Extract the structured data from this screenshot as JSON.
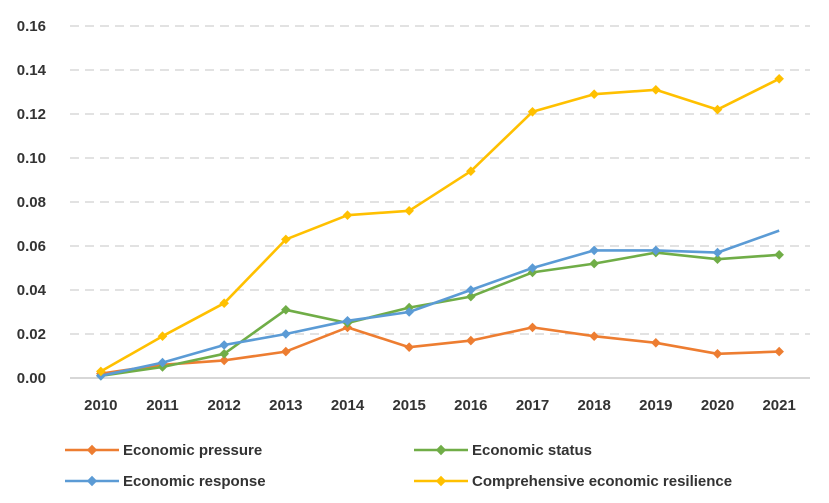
{
  "chart_data": {
    "type": "line",
    "title": "",
    "xlabel": "",
    "ylabel": "",
    "ylim": [
      0,
      0.16
    ],
    "yticks": [
      "0.00",
      "0.02",
      "0.04",
      "0.06",
      "0.08",
      "0.10",
      "0.12",
      "0.14",
      "0.16"
    ],
    "ytick_values": [
      0,
      0.02,
      0.04,
      0.06,
      0.08,
      0.1,
      0.12,
      0.14,
      0.16
    ],
    "grid": "horizontal-dashed",
    "legend_position": "bottom",
    "categories": [
      "2010",
      "2011",
      "2012",
      "2013",
      "2014",
      "2015",
      "2016",
      "2017",
      "2018",
      "2019",
      "2020",
      "2021"
    ],
    "series": [
      {
        "name": "Economic pressure",
        "color": "#ED7D31",
        "marker": "diamond",
        "values": [
          0.002,
          0.006,
          0.008,
          0.012,
          0.023,
          0.014,
          0.017,
          0.023,
          0.019,
          0.016,
          0.011,
          0.012
        ]
      },
      {
        "name": "Economic status",
        "color": "#70AD47",
        "marker": "diamond",
        "values": [
          0.001,
          0.005,
          0.011,
          0.031,
          0.025,
          0.032,
          0.037,
          0.048,
          0.052,
          0.057,
          0.054,
          0.056
        ]
      },
      {
        "name": "Economic response",
        "color": "#5B9BD5",
        "marker": "diamond",
        "values": [
          0.001,
          0.007,
          0.015,
          0.02,
          0.026,
          0.03,
          0.04,
          0.05,
          0.058,
          0.058,
          0.057,
          0.067
        ]
      },
      {
        "name": "Comprehensive economic resilience",
        "color": "#FFC000",
        "marker": "diamond",
        "values": [
          0.003,
          0.019,
          0.034,
          0.063,
          0.074,
          0.076,
          0.094,
          0.121,
          0.129,
          0.131,
          0.122,
          0.136
        ]
      }
    ]
  }
}
